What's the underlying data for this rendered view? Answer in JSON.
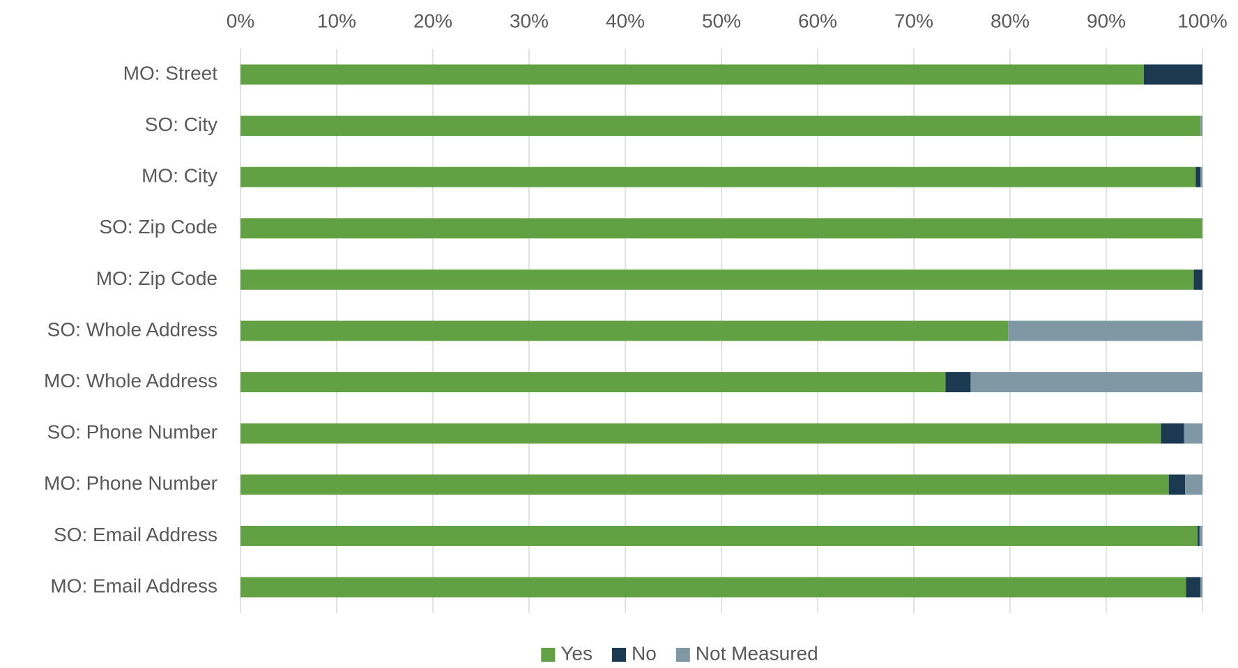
{
  "chart_data": {
    "type": "bar",
    "orientation": "horizontal",
    "stacked": "percent",
    "title": "",
    "xlabel": "",
    "ylabel": "",
    "xlim": [
      0,
      100
    ],
    "x_ticks": [
      "0%",
      "10%",
      "20%",
      "30%",
      "40%",
      "50%",
      "60%",
      "70%",
      "80%",
      "90%",
      "100%"
    ],
    "x_axis_position": "top",
    "grid": true,
    "legend_position": "bottom-center",
    "categories": [
      "MO: Street",
      "SO: City",
      "MO: City",
      "SO: Zip Code",
      "MO: Zip Code",
      "SO: Whole Address",
      "MO: Whole Address",
      "SO: Phone Number",
      "MO: Phone Number",
      "SO: Email Address",
      "MO: Email Address"
    ],
    "series": [
      {
        "name": "Yes",
        "color": "#62A044",
        "values": [
          93.9,
          99.8,
          99.3,
          100.0,
          99.1,
          79.8,
          73.3,
          95.7,
          96.5,
          99.5,
          98.3
        ]
      },
      {
        "name": "No",
        "color": "#1B3A52",
        "values": [
          6.1,
          0.0,
          0.5,
          0.0,
          0.9,
          0.0,
          2.6,
          2.4,
          1.7,
          0.2,
          1.5
        ]
      },
      {
        "name": "Not Measured",
        "color": "#8097A4",
        "values": [
          0.0,
          0.2,
          0.2,
          0.0,
          0.0,
          20.2,
          24.1,
          1.9,
          1.8,
          0.3,
          0.2
        ]
      }
    ]
  }
}
